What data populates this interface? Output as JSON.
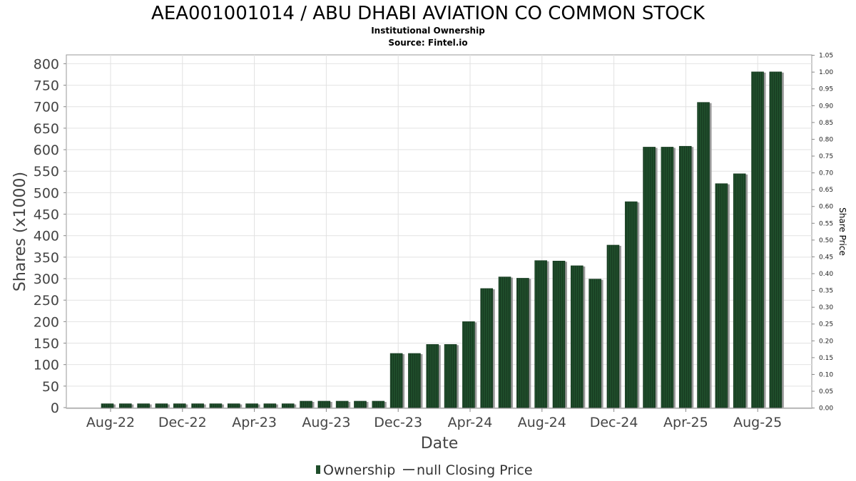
{
  "chart_data": {
    "type": "bar",
    "title": "AEA001001014 / ABU DHABI AVIATION CO COMMON STOCK",
    "subtitle": "Institutional Ownership",
    "source": "Source: Fintel.io",
    "xlabel": "Date",
    "ylabel": "Shares (x1000)",
    "y2label": "Share Price",
    "ylim": [
      0,
      820
    ],
    "y2lim": [
      0,
      1.05
    ],
    "yticks": [
      "0",
      "50",
      "100",
      "150",
      "200",
      "250",
      "300",
      "350",
      "400",
      "450",
      "500",
      "550",
      "600",
      "650",
      "700",
      "750",
      "800"
    ],
    "y2ticks": [
      "0.00",
      "0.05",
      "0.10",
      "0.15",
      "0.20",
      "0.25",
      "0.30",
      "0.35",
      "0.40",
      "0.45",
      "0.50",
      "0.55",
      "0.60",
      "0.65",
      "0.70",
      "0.75",
      "0.80",
      "0.85",
      "0.90",
      "0.95",
      "1.00",
      "1.05"
    ],
    "xticks": [
      "Aug-22",
      "Dec-22",
      "Apr-23",
      "Aug-23",
      "Dec-23",
      "Apr-24",
      "Aug-24",
      "Dec-24",
      "Apr-25",
      "Aug-25"
    ],
    "grid": true,
    "legend_position": "bottom",
    "series": [
      {
        "name": "Ownership",
        "color": "#1f4d2b",
        "values": [
          9,
          9,
          9,
          9,
          9,
          9,
          9,
          9,
          9,
          9,
          9,
          15,
          15,
          15,
          15,
          15,
          126,
          126,
          147,
          147,
          200,
          277,
          304,
          301,
          342,
          341,
          330,
          299,
          378,
          479,
          606,
          606,
          608,
          710,
          521,
          544,
          781,
          781
        ]
      },
      {
        "name": "null Closing Price",
        "color": "#555555",
        "values": []
      }
    ]
  }
}
